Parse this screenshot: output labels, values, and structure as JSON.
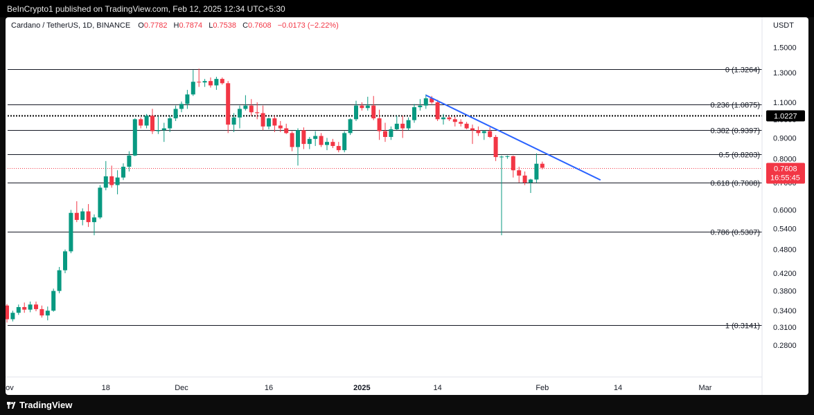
{
  "attribution": "BeInCrypto1 published on TradingView.com, Feb 12, 2025 12:34 UTC+5:30",
  "brand": "TradingView",
  "legend": {
    "symbol": "Cardano / TetherUS, 1D, BINANCE",
    "o_label": "O",
    "o": "0.7782",
    "h_label": "H",
    "h": "0.7874",
    "l_label": "L",
    "l": "0.7538",
    "c_label": "C",
    "c": "0.7608",
    "change": "−0.0173 (−2.22%)"
  },
  "currency": "USDT",
  "colors": {
    "up": "#089981",
    "down": "#f23645",
    "trendline": "#2962ff",
    "fib": "#131722"
  },
  "chart_data": {
    "type": "candlestick",
    "y_scale": "log",
    "ylim": [
      0.255,
      1.58
    ],
    "y_ticks": [
      "1.5000",
      "1.3000",
      "1.1000",
      "1.0000",
      "0.9000",
      "0.8000",
      "0.7000",
      "0.6000",
      "0.5400",
      "0.4800",
      "0.4200",
      "0.3800",
      "0.3400",
      "0.3100",
      "0.2800"
    ],
    "y_tick_values": [
      1.5,
      1.3,
      1.1,
      1.0,
      0.9,
      0.8,
      0.7,
      0.6,
      0.54,
      0.48,
      0.42,
      0.38,
      0.34,
      0.31,
      0.28
    ],
    "x_ticks": [
      {
        "label": "Nov",
        "day": 0,
        "bold": false
      },
      {
        "label": "18",
        "day": 17,
        "bold": false
      },
      {
        "label": "Dec",
        "day": 30,
        "bold": false
      },
      {
        "label": "16",
        "day": 45,
        "bold": false
      },
      {
        "label": "2025",
        "day": 61,
        "bold": true
      },
      {
        "label": "14",
        "day": 74,
        "bold": false
      },
      {
        "label": "Feb",
        "day": 92,
        "bold": false
      },
      {
        "label": "14",
        "day": 105,
        "bold": false
      },
      {
        "label": "Mar",
        "day": 120,
        "bold": false
      }
    ],
    "fib_levels": [
      {
        "label": "0 (1.3264)",
        "value": 1.3264
      },
      {
        "label": "0.236 (1.0875)",
        "value": 1.0875
      },
      {
        "label": "0.382 (0.9397)",
        "value": 0.9397
      },
      {
        "label": "0.5 (0.8203)",
        "value": 0.8203
      },
      {
        "label": "0.618 (0.7008)",
        "value": 0.7008
      },
      {
        "label": "0.786 (0.5307)",
        "value": 0.5307
      },
      {
        "label": "1 (0.3141)",
        "value": 0.3141
      }
    ],
    "price_line": {
      "label": "1.0227",
      "value": 1.0227
    },
    "last_price": {
      "label": "0.7608",
      "value": 0.7608,
      "countdown": "16:55:45"
    },
    "trendline": {
      "start": {
        "day": 72,
        "price": 1.145
      },
      "end": {
        "day": 102,
        "price": 0.71
      }
    },
    "candles": [
      [
        0.35,
        0.353,
        0.318,
        0.324
      ],
      [
        0.324,
        0.34,
        0.32,
        0.336
      ],
      [
        0.336,
        0.352,
        0.332,
        0.347
      ],
      [
        0.347,
        0.356,
        0.336,
        0.342
      ],
      [
        0.342,
        0.358,
        0.337,
        0.352
      ],
      [
        0.352,
        0.358,
        0.339,
        0.343
      ],
      [
        0.343,
        0.35,
        0.327,
        0.331
      ],
      [
        0.331,
        0.348,
        0.322,
        0.34
      ],
      [
        0.34,
        0.385,
        0.338,
        0.38
      ],
      [
        0.38,
        0.435,
        0.375,
        0.427
      ],
      [
        0.427,
        0.48,
        0.42,
        0.475
      ],
      [
        0.475,
        0.6,
        0.47,
        0.59
      ],
      [
        0.59,
        0.63,
        0.56,
        0.567
      ],
      [
        0.567,
        0.605,
        0.55,
        0.595
      ],
      [
        0.595,
        0.62,
        0.545,
        0.56
      ],
      [
        0.56,
        0.585,
        0.52,
        0.575
      ],
      [
        0.575,
        0.69,
        0.57,
        0.68
      ],
      [
        0.68,
        0.79,
        0.67,
        0.725
      ],
      [
        0.725,
        0.77,
        0.68,
        0.69
      ],
      [
        0.69,
        0.75,
        0.655,
        0.72
      ],
      [
        0.72,
        0.78,
        0.71,
        0.765
      ],
      [
        0.765,
        0.835,
        0.745,
        0.815
      ],
      [
        0.815,
        1.005,
        0.812,
        1.0
      ],
      [
        1.0,
        1.01,
        0.95,
        0.965
      ],
      [
        0.965,
        1.03,
        0.95,
        1.02
      ],
      [
        1.02,
        1.06,
        0.92,
        0.935
      ],
      [
        0.935,
        1.015,
        0.92,
        0.94
      ],
      [
        0.94,
        0.98,
        0.88,
        0.95
      ],
      [
        0.95,
        1.02,
        0.93,
        1.005
      ],
      [
        1.005,
        1.08,
        0.99,
        1.06
      ],
      [
        1.06,
        1.105,
        1.04,
        1.09
      ],
      [
        1.09,
        1.18,
        1.06,
        1.15
      ],
      [
        1.15,
        1.32,
        1.14,
        1.235
      ],
      [
        1.235,
        1.33,
        1.2,
        1.23
      ],
      [
        1.23,
        1.255,
        1.2,
        1.24
      ],
      [
        1.24,
        1.265,
        1.195,
        1.21
      ],
      [
        1.21,
        1.27,
        1.18,
        1.255
      ],
      [
        1.255,
        1.265,
        1.215,
        1.225
      ],
      [
        1.225,
        1.24,
        0.925,
        0.97
      ],
      [
        0.97,
        1.035,
        0.93,
        1.01
      ],
      [
        1.01,
        1.08,
        0.95,
        1.06
      ],
      [
        1.06,
        1.145,
        1.05,
        1.08
      ],
      [
        1.08,
        1.12,
        1.02,
        1.04
      ],
      [
        1.04,
        1.1,
        1.0,
        1.035
      ],
      [
        1.035,
        1.08,
        0.94,
        0.96
      ],
      [
        0.96,
        1.01,
        0.945,
        1.005
      ],
      [
        1.005,
        1.02,
        0.93,
        0.965
      ],
      [
        0.965,
        0.99,
        0.93,
        0.95
      ],
      [
        0.95,
        0.975,
        0.92,
        0.925
      ],
      [
        0.925,
        0.935,
        0.835,
        0.855
      ],
      [
        0.855,
        0.95,
        0.77,
        0.94
      ],
      [
        0.94,
        0.955,
        0.845,
        0.87
      ],
      [
        0.87,
        0.905,
        0.845,
        0.895
      ],
      [
        0.895,
        0.935,
        0.86,
        0.91
      ],
      [
        0.91,
        0.925,
        0.855,
        0.865
      ],
      [
        0.865,
        0.9,
        0.84,
        0.88
      ],
      [
        0.88,
        0.895,
        0.85,
        0.86
      ],
      [
        0.86,
        0.88,
        0.83,
        0.84
      ],
      [
        0.84,
        0.935,
        0.83,
        0.925
      ],
      [
        0.925,
        1.005,
        0.915,
        1.0
      ],
      [
        1.0,
        1.11,
        0.99,
        1.08
      ],
      [
        1.08,
        1.1,
        1.05,
        1.065
      ],
      [
        1.065,
        1.135,
        1.05,
        1.08
      ],
      [
        1.08,
        1.14,
        0.995,
        1.005
      ],
      [
        1.005,
        1.055,
        0.89,
        0.935
      ],
      [
        0.935,
        0.98,
        0.88,
        0.905
      ],
      [
        0.905,
        0.96,
        0.89,
        0.945
      ],
      [
        0.945,
        1.02,
        0.94,
        0.975
      ],
      [
        0.975,
        1.02,
        0.9,
        0.95
      ],
      [
        0.95,
        1.01,
        0.94,
        0.995
      ],
      [
        0.995,
        1.09,
        0.98,
        1.07
      ],
      [
        1.07,
        1.12,
        1.05,
        1.08
      ],
      [
        1.08,
        1.15,
        1.06,
        1.125
      ],
      [
        1.125,
        1.14,
        1.09,
        1.1
      ],
      [
        1.1,
        1.115,
        0.99,
        1.0
      ],
      [
        1.0,
        1.03,
        0.97,
        1.01
      ],
      [
        1.01,
        1.02,
        0.99,
        1.0
      ],
      [
        1.0,
        1.015,
        0.96,
        0.985
      ],
      [
        0.985,
        1.0,
        0.96,
        0.975
      ],
      [
        0.975,
        0.985,
        0.945,
        0.95
      ],
      [
        0.95,
        0.97,
        0.87,
        0.94
      ],
      [
        0.94,
        0.96,
        0.91,
        0.925
      ],
      [
        0.925,
        0.94,
        0.89,
        0.935
      ],
      [
        0.935,
        0.955,
        0.9,
        0.905
      ],
      [
        0.905,
        0.915,
        0.79,
        0.808
      ],
      [
        0.808,
        0.815,
        0.52,
        0.81
      ],
      [
        0.81,
        0.815,
        0.8,
        0.812
      ],
      [
        0.812,
        0.815,
        0.72,
        0.75
      ],
      [
        0.75,
        0.765,
        0.7,
        0.728
      ],
      [
        0.728,
        0.745,
        0.69,
        0.7
      ],
      [
        0.7,
        0.715,
        0.66,
        0.712
      ],
      [
        0.712,
        0.825,
        0.7,
        0.7782
      ],
      [
        0.7782,
        0.7874,
        0.7538,
        0.7608
      ]
    ]
  }
}
